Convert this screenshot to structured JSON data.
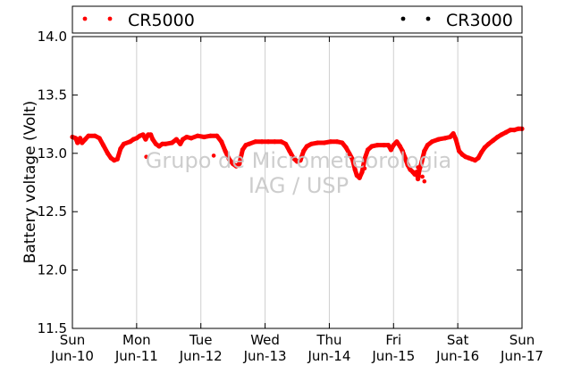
{
  "chart_data": {
    "type": "scatter",
    "ylabel": "Battery voltage (Volt)",
    "ylim": [
      11.5,
      14.0
    ],
    "yticks": [
      "11.5",
      "12.0",
      "12.5",
      "13.0",
      "13.5",
      "14.0"
    ],
    "x_days": [
      "Sun",
      "Mon",
      "Tue",
      "Wed",
      "Thu",
      "Fri",
      "Sat",
      "Sun"
    ],
    "x_dates": [
      "Jun-10",
      "Jun-11",
      "Jun-12",
      "Jun-13",
      "Jun-14",
      "Jun-15",
      "Jun-16",
      "Jun-17"
    ],
    "xlim_days": [
      0,
      7
    ],
    "grid": "vertical",
    "legend_position": "top",
    "watermark": [
      "Grupo de Micrometeorologia",
      "IAG / USP"
    ],
    "series": [
      {
        "name": "CR5000",
        "color": "#ff0000",
        "points": [
          [
            0.0,
            13.14
          ],
          [
            0.05,
            13.13
          ],
          [
            0.08,
            13.09
          ],
          [
            0.12,
            13.13
          ],
          [
            0.15,
            13.09
          ],
          [
            0.2,
            13.12
          ],
          [
            0.25,
            13.15
          ],
          [
            0.35,
            13.15
          ],
          [
            0.42,
            13.13
          ],
          [
            0.48,
            13.07
          ],
          [
            0.55,
            13.0
          ],
          [
            0.6,
            12.96
          ],
          [
            0.65,
            12.94
          ],
          [
            0.7,
            12.95
          ],
          [
            0.75,
            13.04
          ],
          [
            0.8,
            13.08
          ],
          [
            0.9,
            13.1
          ],
          [
            0.95,
            13.12
          ],
          [
            1.0,
            13.13
          ],
          [
            1.05,
            13.15
          ],
          [
            1.1,
            13.16
          ],
          [
            1.14,
            13.12
          ],
          [
            1.18,
            13.16
          ],
          [
            1.22,
            13.16
          ],
          [
            1.25,
            13.12
          ],
          [
            1.3,
            13.08
          ],
          [
            1.35,
            13.06
          ],
          [
            1.4,
            13.08
          ],
          [
            1.45,
            13.08
          ],
          [
            1.55,
            13.09
          ],
          [
            1.62,
            13.12
          ],
          [
            1.68,
            13.08
          ],
          [
            1.72,
            13.12
          ],
          [
            1.78,
            13.14
          ],
          [
            1.85,
            13.13
          ],
          [
            1.95,
            13.15
          ],
          [
            2.05,
            13.14
          ],
          [
            2.15,
            13.15
          ],
          [
            2.25,
            13.15
          ],
          [
            2.32,
            13.1
          ],
          [
            2.38,
            13.02
          ],
          [
            2.44,
            12.95
          ],
          [
            2.5,
            12.91
          ],
          [
            2.55,
            12.89
          ],
          [
            2.6,
            12.91
          ],
          [
            2.65,
            13.03
          ],
          [
            2.7,
            13.07
          ],
          [
            2.75,
            13.08
          ],
          [
            2.85,
            13.1
          ],
          [
            2.95,
            13.1
          ],
          [
            3.05,
            13.1
          ],
          [
            3.15,
            13.1
          ],
          [
            3.25,
            13.1
          ],
          [
            3.32,
            13.08
          ],
          [
            3.38,
            13.02
          ],
          [
            3.44,
            12.96
          ],
          [
            3.5,
            12.93
          ],
          [
            3.55,
            12.94
          ],
          [
            3.6,
            13.02
          ],
          [
            3.65,
            13.06
          ],
          [
            3.72,
            13.08
          ],
          [
            3.82,
            13.09
          ],
          [
            3.92,
            13.09
          ],
          [
            4.02,
            13.1
          ],
          [
            4.12,
            13.1
          ],
          [
            4.2,
            13.09
          ],
          [
            4.26,
            13.05
          ],
          [
            4.31,
            13.0
          ],
          [
            4.36,
            12.95
          ],
          [
            4.4,
            12.86
          ],
          [
            4.43,
            12.81
          ],
          [
            4.47,
            12.79
          ],
          [
            4.51,
            12.84
          ],
          [
            4.55,
            12.95
          ],
          [
            4.6,
            13.03
          ],
          [
            4.66,
            13.06
          ],
          [
            4.75,
            13.07
          ],
          [
            4.85,
            13.07
          ],
          [
            4.92,
            13.07
          ],
          [
            4.96,
            13.03
          ],
          [
            5.0,
            13.07
          ],
          [
            5.05,
            13.1
          ],
          [
            5.1,
            13.06
          ],
          [
            5.14,
            13.02
          ],
          [
            5.18,
            12.96
          ],
          [
            5.22,
            12.9
          ],
          [
            5.26,
            12.86
          ],
          [
            5.3,
            12.84
          ],
          [
            5.33,
            12.82
          ],
          [
            5.36,
            12.84
          ],
          [
            5.38,
            12.78
          ],
          [
            5.4,
            12.85
          ],
          [
            5.44,
            12.93
          ],
          [
            5.48,
            13.02
          ],
          [
            5.53,
            13.07
          ],
          [
            5.6,
            13.1
          ],
          [
            5.7,
            13.12
          ],
          [
            5.8,
            13.13
          ],
          [
            5.88,
            13.14
          ],
          [
            5.93,
            13.17
          ],
          [
            5.97,
            13.12
          ],
          [
            6.02,
            13.02
          ],
          [
            6.07,
            12.99
          ],
          [
            6.12,
            12.97
          ],
          [
            6.17,
            12.96
          ],
          [
            6.22,
            12.95
          ],
          [
            6.27,
            12.94
          ],
          [
            6.32,
            12.96
          ],
          [
            6.37,
            13.01
          ],
          [
            6.42,
            13.05
          ],
          [
            6.48,
            13.08
          ],
          [
            6.55,
            13.11
          ],
          [
            6.62,
            13.14
          ],
          [
            6.68,
            13.16
          ],
          [
            6.75,
            13.18
          ],
          [
            6.82,
            13.2
          ],
          [
            6.88,
            13.2
          ],
          [
            6.94,
            13.21
          ],
          [
            7.0,
            13.21
          ]
        ],
        "outliers": [
          [
            1.15,
            12.97
          ],
          [
            2.2,
            12.98
          ],
          [
            4.55,
            12.87
          ],
          [
            5.38,
            12.88
          ],
          [
            5.45,
            12.8
          ],
          [
            5.48,
            12.76
          ]
        ]
      },
      {
        "name": "CR3000",
        "color": "#000000",
        "points": []
      }
    ]
  }
}
